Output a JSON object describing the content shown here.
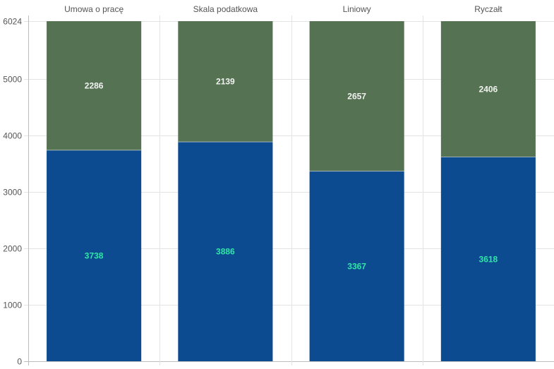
{
  "chart_data": {
    "type": "bar",
    "stacked": true,
    "x_axis_position": "top",
    "categories": [
      "Umowa o pracę",
      "Skala podatkowa",
      "Liniowy",
      "Ryczałt"
    ],
    "series": [
      {
        "values": [
          3738,
          3886,
          3367,
          3618
        ],
        "color": "#0d4b91",
        "label_color": "#2ee6a6"
      },
      {
        "values": [
          2286,
          2139,
          2657,
          2406
        ],
        "color": "#557352",
        "label_color": "#f2f2f2"
      }
    ],
    "ylim": [
      0,
      6024
    ],
    "yticks": [
      0,
      1000,
      2000,
      3000,
      4000,
      5000,
      6024
    ],
    "grid": true,
    "legend": "none"
  }
}
